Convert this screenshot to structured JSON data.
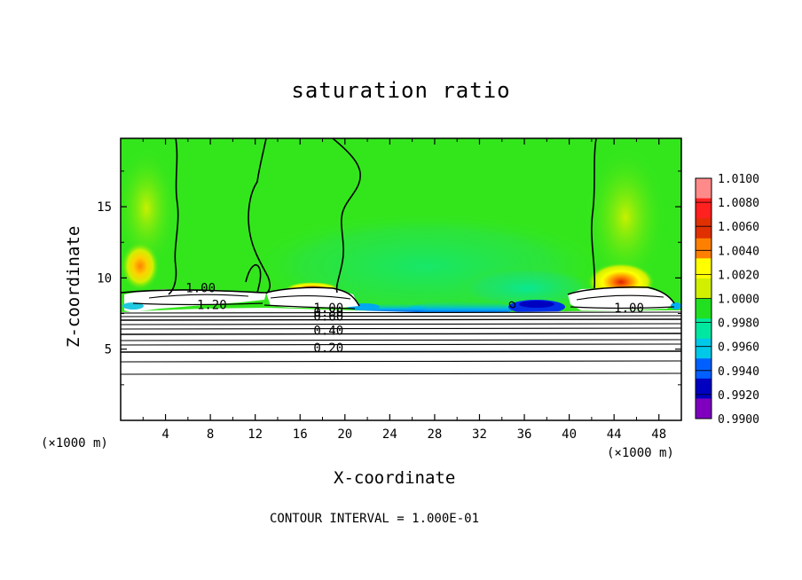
{
  "chart_data": {
    "type": "heatmap",
    "title": "saturation ratio",
    "xlabel": "X-coordinate",
    "ylabel": "Z-coordinate",
    "x_unit": "(×1000 m)",
    "z_unit": "(×1000 m)",
    "footer": "CONTOUR INTERVAL = 1.000E-01",
    "x_ticks": [
      "4",
      "8",
      "12",
      "16",
      "20",
      "24",
      "28",
      "32",
      "36",
      "40",
      "44",
      "48"
    ],
    "y_ticks": [
      "5",
      "10",
      "15"
    ],
    "xlim": [
      0,
      50
    ],
    "ylim": [
      0,
      19.8
    ],
    "colorbar": {
      "labels": [
        "1.0100",
        "1.0080",
        "1.0060",
        "1.0040",
        "1.0020",
        "1.0000",
        "0.9980",
        "0.9960",
        "0.9940",
        "0.9920",
        "0.9900"
      ],
      "colors": [
        "#ff8a8a",
        "#ff2020",
        "#e03000",
        "#ff8000",
        "#ffff00",
        "#d0f000",
        "#20e020",
        "#00e8a0",
        "#00c8e8",
        "#0060ff",
        "#0000c0",
        "#8000c0"
      ],
      "range": [
        0.99,
        1.01
      ]
    },
    "contour_labels": [
      {
        "text": "1.00",
        "x": 5.8,
        "z": 9.0
      },
      {
        "text": "1.20",
        "x": 6.8,
        "z": 7.8
      },
      {
        "text": "1.00",
        "x": 17.2,
        "z": 7.6
      },
      {
        "text": "0.80",
        "x": 17.2,
        "z": 7.3
      },
      {
        "text": "0.60",
        "x": 17.2,
        "z": 7.0
      },
      {
        "text": "0.40",
        "x": 17.2,
        "z": 6.0
      },
      {
        "text": "0.20",
        "x": 17.2,
        "z": 4.8
      },
      {
        "text": "1.00",
        "x": 44.0,
        "z": 7.6
      }
    ],
    "features": {
      "supersaturation_maxima": [
        {
          "x": 1.7,
          "z": 11.2,
          "value": 1.0045
        },
        {
          "x": 44.8,
          "z": 10.0,
          "value": 1.006
        },
        {
          "x": 17.2,
          "z": 9.2,
          "value": 1.005
        }
      ],
      "subsaturation_minima": [
        {
          "x": 27,
          "z": 7.8,
          "value": 0.9935
        },
        {
          "x": 38,
          "z": 8.0,
          "value": 0.993
        }
      ],
      "background_value": 1.0
    }
  }
}
